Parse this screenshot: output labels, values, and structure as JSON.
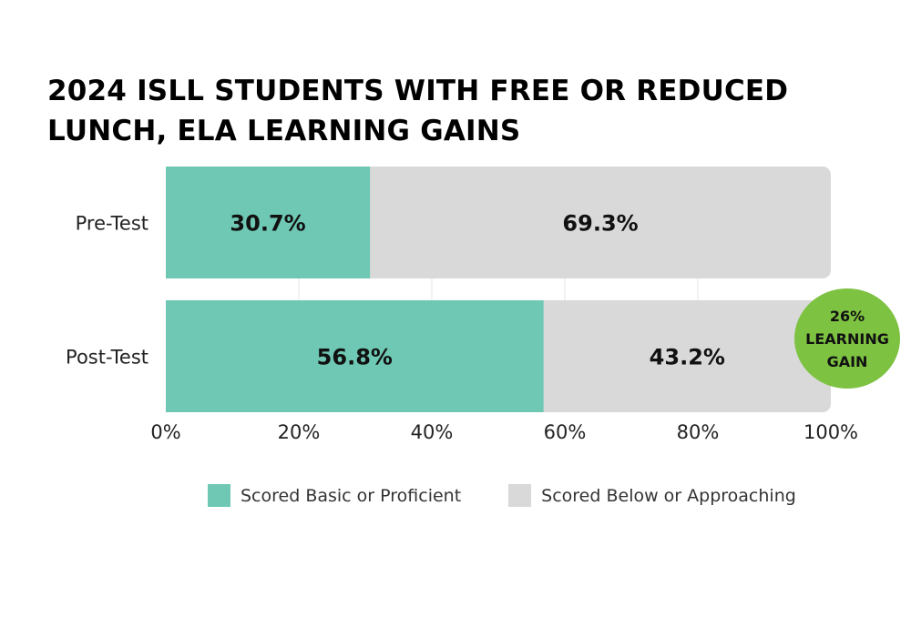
{
  "colors": {
    "primary": "#6ec8b4",
    "secondary": "#d9d9d9",
    "badge": "#7dc241",
    "grid": "#e6e6e6"
  },
  "chart_data": {
    "type": "bar",
    "orientation": "horizontal",
    "stacked": true,
    "title_lines": [
      "2024 ISLL STUDENTS WITH FREE OR REDUCED",
      "LUNCH, ELA LEARNING GAINS"
    ],
    "categories": [
      "Pre-Test",
      "Post-Test"
    ],
    "series": [
      {
        "name": "Scored Basic or Proficient",
        "values": [
          30.7,
          56.8
        ],
        "labels": [
          "30.7%",
          "56.8%"
        ],
        "color": "#6ec8b4"
      },
      {
        "name": "Scored Below or Approaching",
        "values": [
          69.3,
          43.2
        ],
        "labels": [
          "69.3%",
          "43.2%"
        ],
        "color": "#d9d9d9"
      }
    ],
    "xlim": [
      0,
      100
    ],
    "x_ticks": [
      0,
      20,
      40,
      60,
      80,
      100
    ],
    "x_tick_labels": [
      "0%",
      "20%",
      "40%",
      "60%",
      "80%",
      "100%"
    ],
    "grid": true,
    "legend_position": "bottom"
  },
  "badge": {
    "line1": "26%",
    "line2": "LEARNING",
    "line3": "GAIN"
  }
}
